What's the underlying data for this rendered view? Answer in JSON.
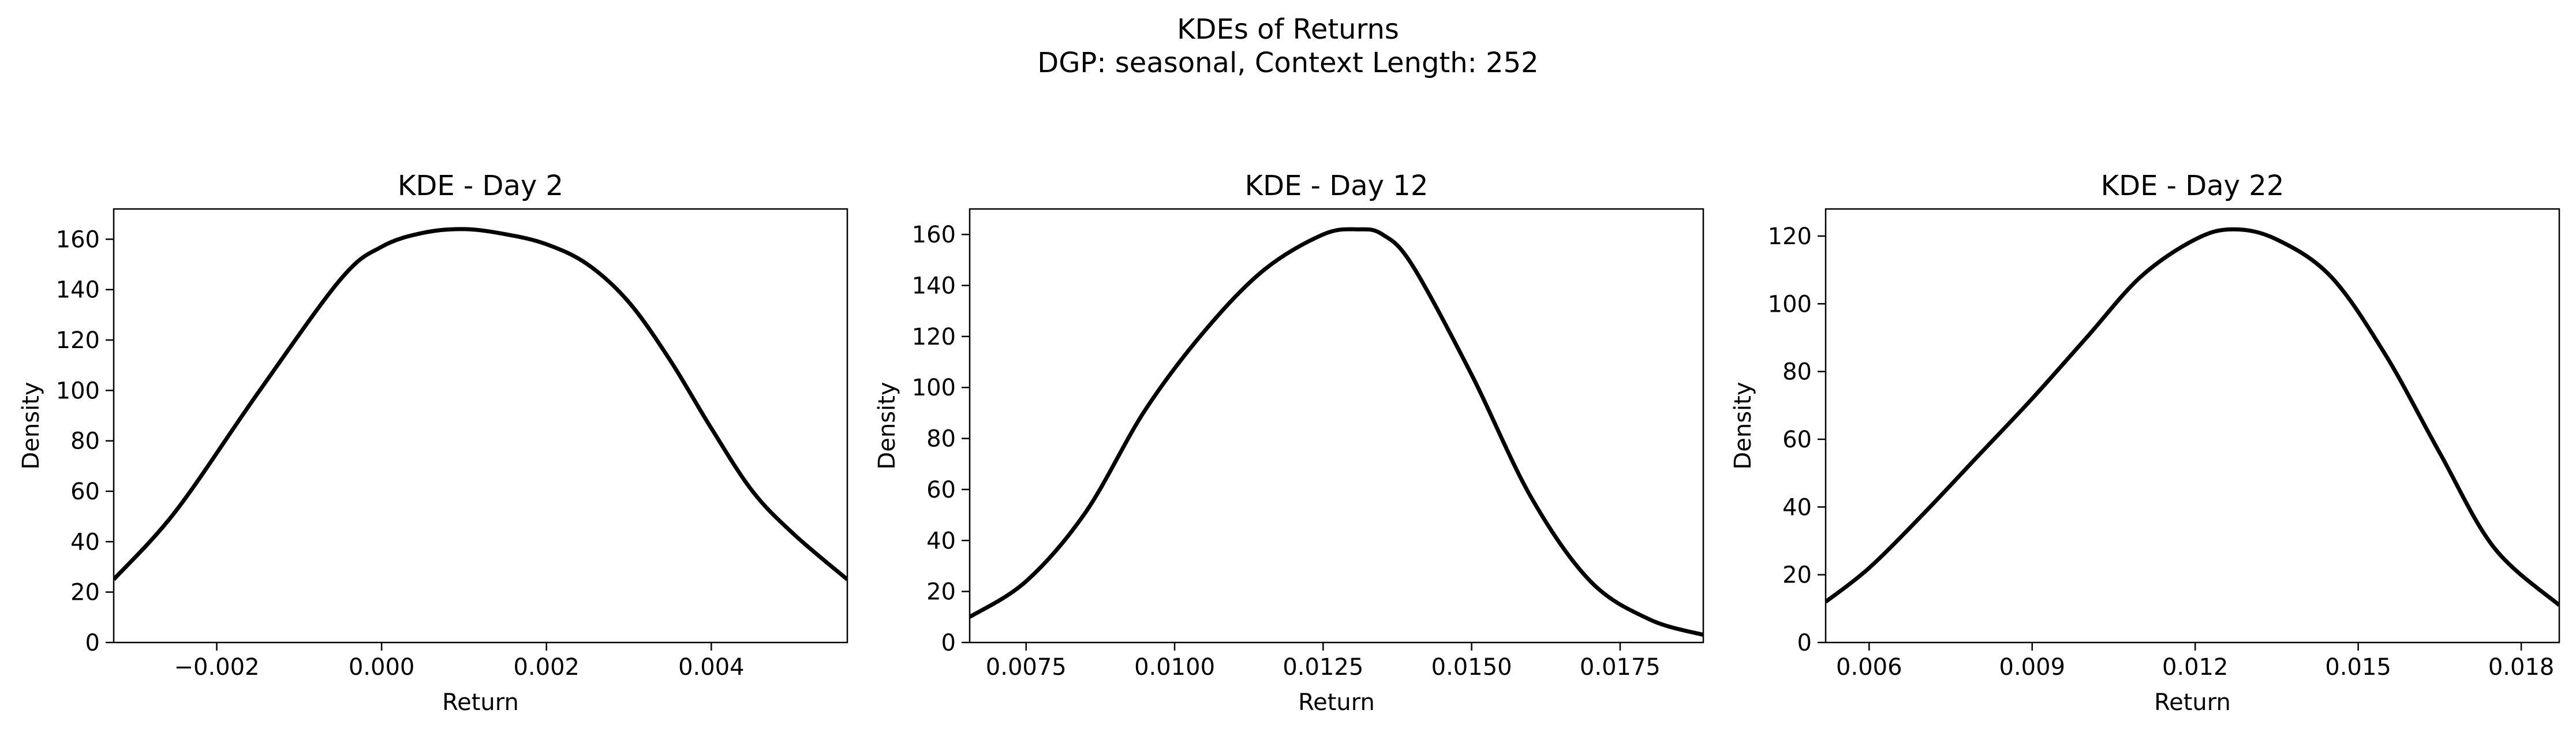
{
  "figure": {
    "title_line1": "KDEs of Returns",
    "title_line2": "DGP: seasonal, Context Length: 252"
  },
  "chart_data": [
    {
      "type": "line",
      "title": "KDE - Day 2",
      "xlabel": "Return",
      "ylabel": "Density",
      "xlim": [
        -0.00325,
        0.00565
      ],
      "ylim": [
        0,
        172
      ],
      "xticks": [
        -0.002,
        0.0,
        0.002,
        0.004
      ],
      "xtick_labels": [
        "−0.002",
        "0.000",
        "0.002",
        "0.004"
      ],
      "yticks": [
        0,
        20,
        40,
        60,
        80,
        100,
        120,
        140,
        160
      ],
      "ytick_labels": [
        "0",
        "20",
        "40",
        "60",
        "80",
        "100",
        "120",
        "140",
        "160"
      ],
      "grid": false,
      "line_color": "#000000",
      "series": [
        {
          "x": [
            -0.00325,
            -0.0025,
            -0.0015,
            -0.0005,
            0.0,
            0.0005,
            0.001,
            0.0015,
            0.002,
            0.0025,
            0.003,
            0.0035,
            0.004,
            0.0045,
            0.005,
            0.00565
          ],
          "y": [
            25,
            52,
            99,
            144,
            157,
            162.5,
            164,
            162,
            158,
            150,
            135,
            112,
            85,
            60,
            43,
            25
          ]
        }
      ]
    },
    {
      "type": "line",
      "title": "KDE - Day 12",
      "xlabel": "Return",
      "ylabel": "Density",
      "xlim": [
        0.00655,
        0.0189
      ],
      "ylim": [
        0,
        170
      ],
      "xticks": [
        0.0075,
        0.01,
        0.0125,
        0.015,
        0.0175
      ],
      "xtick_labels": [
        "0.0075",
        "0.0100",
        "0.0125",
        "0.0150",
        "0.0175"
      ],
      "yticks": [
        0,
        20,
        40,
        60,
        80,
        100,
        120,
        140,
        160
      ],
      "ytick_labels": [
        "0",
        "20",
        "40",
        "60",
        "80",
        "100",
        "120",
        "140",
        "160"
      ],
      "grid": false,
      "line_color": "#000000",
      "series": [
        {
          "x": [
            0.00655,
            0.0075,
            0.0085,
            0.0095,
            0.0105,
            0.0115,
            0.0125,
            0.0131,
            0.0135,
            0.014,
            0.015,
            0.016,
            0.017,
            0.018,
            0.0189
          ],
          "y": [
            10,
            24,
            51,
            91,
            122,
            146,
            160,
            162,
            160,
            148,
            105,
            57,
            24,
            9,
            3
          ]
        }
      ]
    },
    {
      "type": "line",
      "title": "KDE - Day 22",
      "xlabel": "Return",
      "ylabel": "Density",
      "xlim": [
        0.0052,
        0.0187
      ],
      "ylim": [
        0,
        128
      ],
      "xticks": [
        0.006,
        0.009,
        0.012,
        0.015,
        0.018
      ],
      "xtick_labels": [
        "0.006",
        "0.009",
        "0.012",
        "0.015",
        "0.018"
      ],
      "yticks": [
        0,
        20,
        40,
        60,
        80,
        100,
        120
      ],
      "ytick_labels": [
        "0",
        "20",
        "40",
        "60",
        "80",
        "100",
        "120"
      ],
      "grid": false,
      "line_color": "#000000",
      "series": [
        {
          "x": [
            0.0052,
            0.006,
            0.007,
            0.008,
            0.009,
            0.01,
            0.011,
            0.012,
            0.0127,
            0.0135,
            0.0145,
            0.0155,
            0.0165,
            0.0175,
            0.0187
          ],
          "y": [
            12,
            22,
            38,
            55,
            72,
            90,
            108,
            119,
            122,
            119,
            108,
            85,
            56,
            28,
            11
          ]
        }
      ]
    }
  ]
}
